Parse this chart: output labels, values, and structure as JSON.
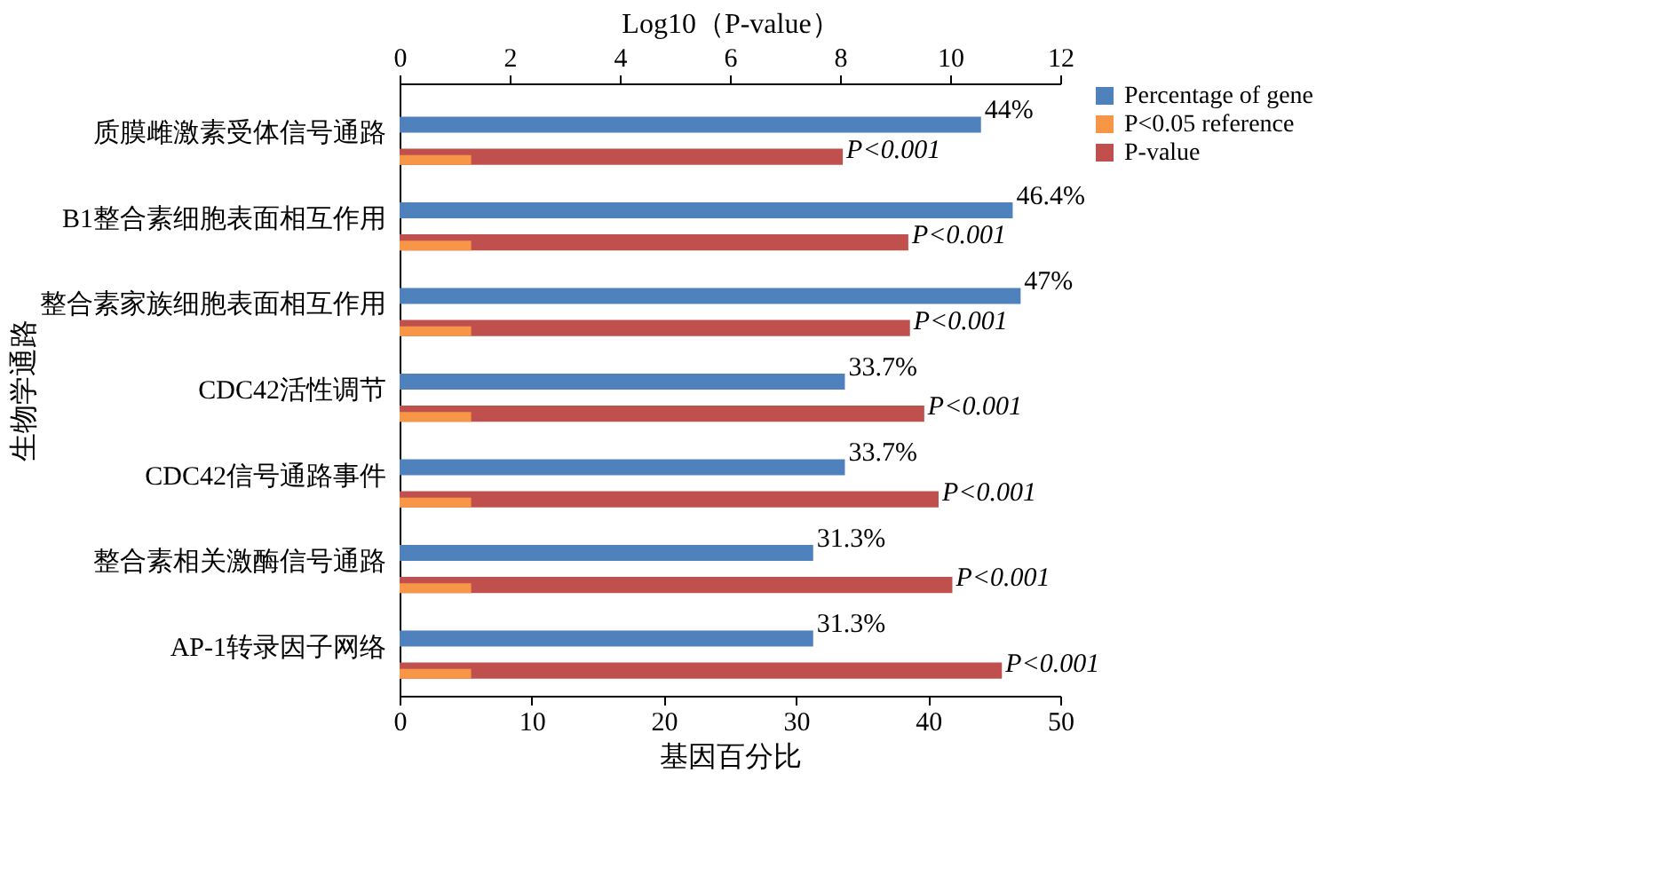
{
  "chart_data": {
    "type": "bar",
    "orientation": "horizontal",
    "xlabel": "基因百分比",
    "ylabel": "生物学通路",
    "x2label": "Log10（P-value）",
    "categories": [
      "质膜雌激素受体信号通路",
      "B1整合素细胞表面相互作用",
      "整合素家族细胞表面相互作用",
      "CDC42活性调节",
      "CDC42信号通路事件",
      "整合素相关激酶信号通路",
      "AP-1转录因子网络"
    ],
    "series": [
      {
        "name": "Percentage of gene",
        "color": "#4f81bd",
        "values": [
          44,
          46.4,
          47,
          33.7,
          33.7,
          31.3,
          31.3
        ],
        "value_labels": [
          "44%",
          "46.4%",
          "47%",
          "33.7%",
          "33.7%",
          "31.3%",
          "31.3%"
        ]
      },
      {
        "name": "P<0.05 reference",
        "color": "#f79646",
        "axis": "x2",
        "values": [
          1.3,
          1.3,
          1.3,
          1.3,
          1.3,
          1.3,
          1.3
        ]
      },
      {
        "name": "P-value",
        "color": "#c0504d",
        "axis": "x2",
        "values": [
          8.05,
          9.24,
          9.27,
          9.53,
          9.79,
          10.04,
          10.94
        ],
        "value_labels": [
          "P<0.001",
          "P<0.001",
          "P<0.001",
          "P<0.001",
          "P<0.001",
          "P<0.001",
          "P<0.001"
        ]
      }
    ],
    "xlim": [
      0,
      50
    ],
    "xticks": [
      0,
      10,
      20,
      30,
      40,
      50
    ],
    "x2lim": [
      0,
      12
    ],
    "x2ticks": [
      0,
      2,
      4,
      6,
      8,
      10,
      12
    ],
    "grid": false,
    "legend": "right"
  }
}
